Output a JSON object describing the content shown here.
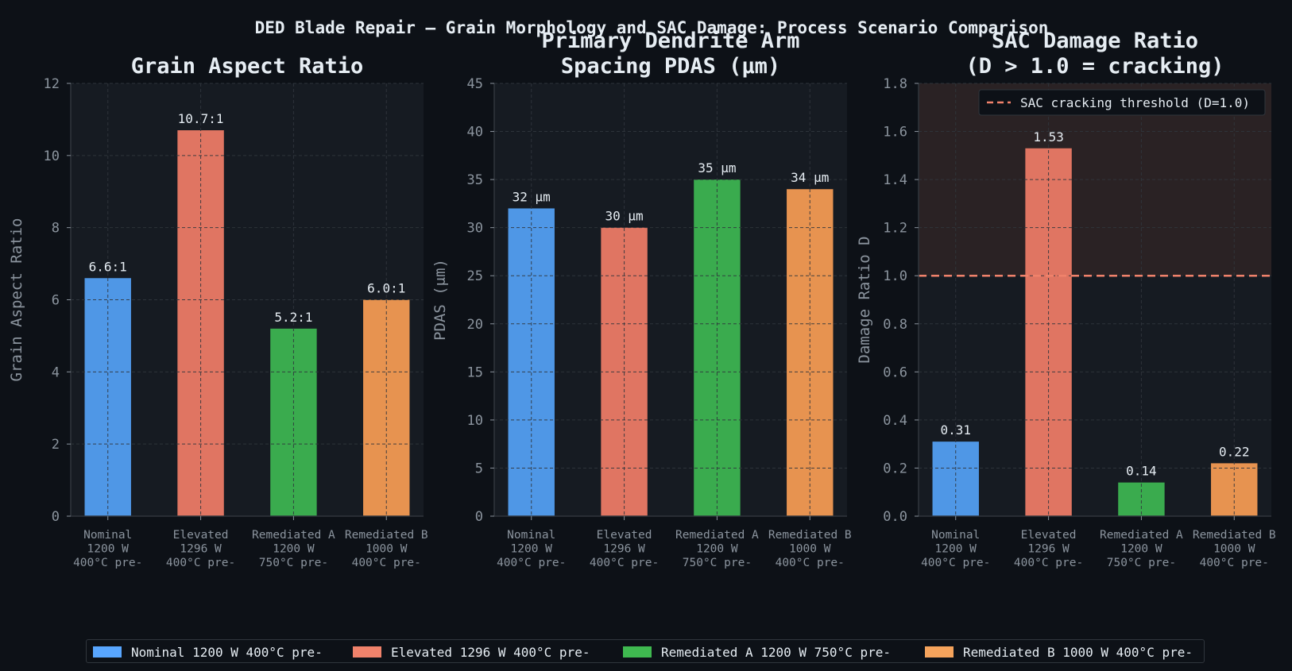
{
  "suptitle": "DED Blade Repair — Grain Morphology and SAC Damage: Process Scenario Comparison",
  "colors": {
    "background": "#0d1117",
    "axes_bg": "#161b22",
    "grid": "#30363d",
    "text": "#e6edf3",
    "tick": "#8b949e",
    "threshold": "#f0826b",
    "zone": "#2a2224"
  },
  "chart_data": [
    {
      "type": "bar",
      "title": "Grain Aspect Ratio",
      "ylabel": "Grain Aspect Ratio",
      "ylim": [
        0,
        12
      ],
      "yticks": [
        "0",
        "2",
        "4",
        "6",
        "8",
        "10",
        "12"
      ],
      "categories": [
        "Nominal\n1200 W\n400°C pre-",
        "Elevated\n1296 W\n400°C pre-",
        "Remediated A\n1200 W\n750°C pre-",
        "Remediated B\n1000 W\n400°C pre-"
      ],
      "values": [
        6.6,
        10.7,
        5.2,
        6.0
      ],
      "data_labels": [
        "6.6:1",
        "10.7:1",
        "5.2:1",
        "6.0:1"
      ],
      "bar_colors": [
        "#4f97e6",
        "#e07562",
        "#3aab4e",
        "#e79350"
      ],
      "grid": true
    },
    {
      "type": "bar",
      "title": "Primary Dendrite Arm\nSpacing PDAS (μm)",
      "ylabel": "PDAS (μm)",
      "ylim": [
        0,
        45
      ],
      "yticks": [
        "0",
        "5",
        "10",
        "15",
        "20",
        "25",
        "30",
        "35",
        "40",
        "45"
      ],
      "categories": [
        "Nominal\n1200 W\n400°C pre-",
        "Elevated\n1296 W\n400°C pre-",
        "Remediated A\n1200 W\n750°C pre-",
        "Remediated B\n1000 W\n400°C pre-"
      ],
      "values": [
        32,
        30,
        35,
        34
      ],
      "data_labels": [
        "32 μm",
        "30 μm",
        "35 μm",
        "34 μm"
      ],
      "bar_colors": [
        "#4f97e6",
        "#e07562",
        "#3aab4e",
        "#e79350"
      ],
      "grid": true
    },
    {
      "type": "bar",
      "title": "SAC Damage Ratio\n(D > 1.0 = cracking)",
      "ylabel": "Damage Ratio D",
      "ylim": [
        0,
        1.8
      ],
      "yticks": [
        "0.0",
        "0.2",
        "0.4",
        "0.6",
        "0.8",
        "1.0",
        "1.2",
        "1.4",
        "1.6",
        "1.8"
      ],
      "categories": [
        "Nominal\n1200 W\n400°C pre-",
        "Elevated\n1296 W\n400°C pre-",
        "Remediated A\n1200 W\n750°C pre-",
        "Remediated B\n1000 W\n400°C pre-"
      ],
      "values": [
        0.31,
        1.53,
        0.14,
        0.22
      ],
      "data_labels": [
        "0.31",
        "1.53",
        "0.14",
        "0.22"
      ],
      "bar_colors": [
        "#4f97e6",
        "#e07562",
        "#3aab4e",
        "#e79350"
      ],
      "threshold": {
        "value": 1.0,
        "label": "SAC cracking threshold (D=1.0)"
      },
      "legend_position": "upper right",
      "grid": true
    }
  ],
  "legend": [
    {
      "label": "Nominal 1200 W 400°C pre-",
      "color": "#58a6ff"
    },
    {
      "label": "Elevated 1296 W 400°C pre-",
      "color": "#f0826b"
    },
    {
      "label": "Remediated A 1200 W 750°C pre-",
      "color": "#3fb950"
    },
    {
      "label": "Remediated B 1000 W 400°C pre-",
      "color": "#f5a35c"
    }
  ]
}
